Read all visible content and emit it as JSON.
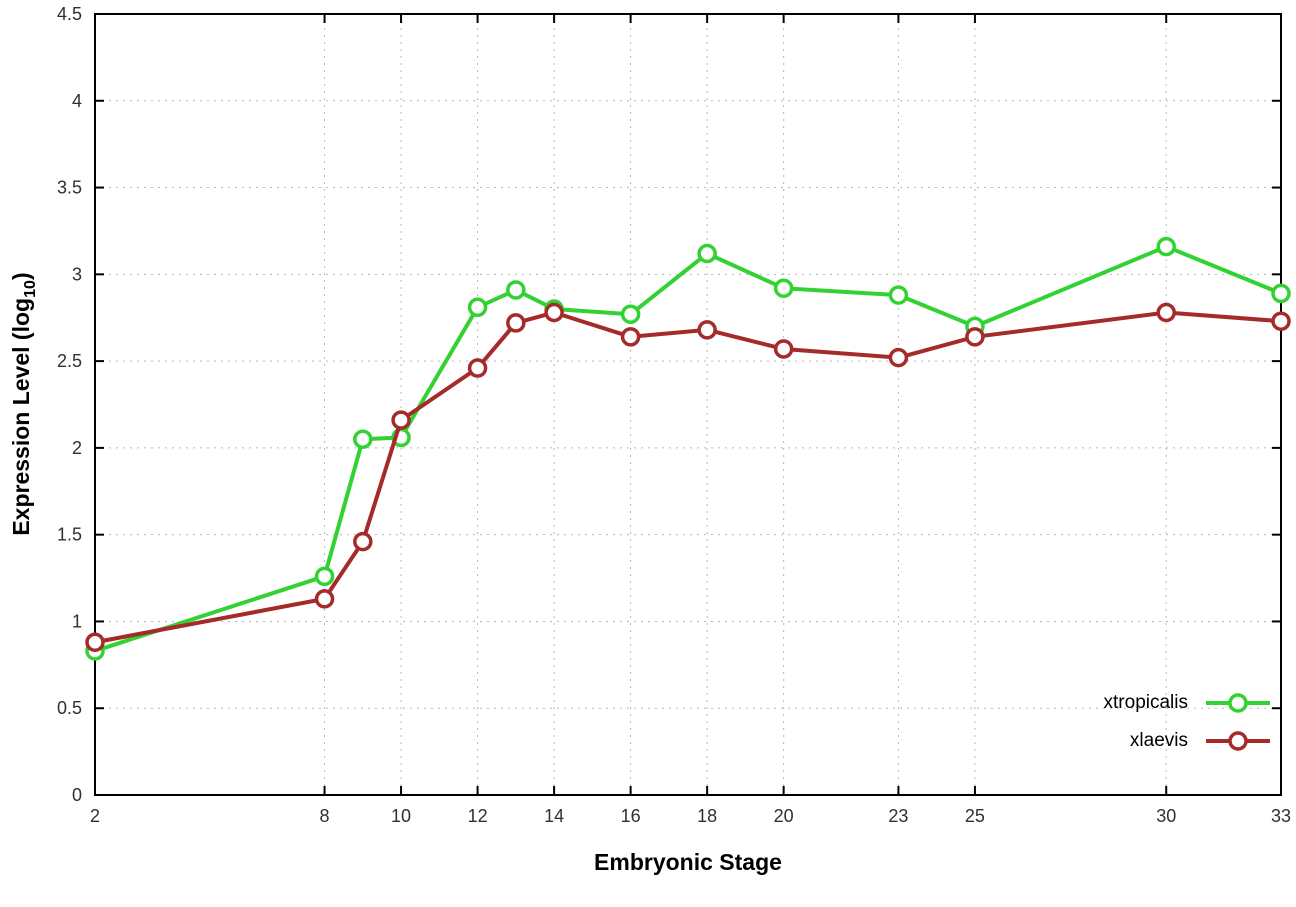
{
  "chart_data": {
    "type": "line",
    "title": "",
    "xlabel": "Embryonic Stage",
    "ylabel": "Expression Level (log10)",
    "ylabel_parts": {
      "prefix": "Expression Level (log",
      "sub": "10",
      "suffix": ")"
    },
    "x": [
      2,
      8,
      9,
      10,
      12,
      13,
      14,
      16,
      18,
      20,
      23,
      25,
      30,
      33
    ],
    "xticks": [
      2,
      8,
      10,
      12,
      14,
      16,
      18,
      20,
      23,
      25,
      30,
      33
    ],
    "yticks": [
      0,
      0.5,
      1,
      1.5,
      2,
      2.5,
      3,
      3.5,
      4,
      4.5
    ],
    "xlim": [
      2,
      33
    ],
    "ylim": [
      0,
      4.5
    ],
    "grid": true,
    "grid_style": "dotted",
    "legend_position": "bottom-right",
    "background_color": "#ffffff",
    "series": [
      {
        "name": "xtropicalis",
        "color": "#32d232",
        "marker": "open-circle",
        "values": [
          0.83,
          1.26,
          2.05,
          2.06,
          2.81,
          2.91,
          2.8,
          2.77,
          3.12,
          2.92,
          2.88,
          2.7,
          3.16,
          2.89
        ]
      },
      {
        "name": "xlaevis",
        "color": "#a52a2a",
        "marker": "open-circle",
        "values": [
          0.88,
          1.13,
          1.46,
          2.16,
          2.46,
          2.72,
          2.78,
          2.64,
          2.68,
          2.57,
          2.52,
          2.64,
          2.78,
          2.73
        ]
      }
    ]
  }
}
